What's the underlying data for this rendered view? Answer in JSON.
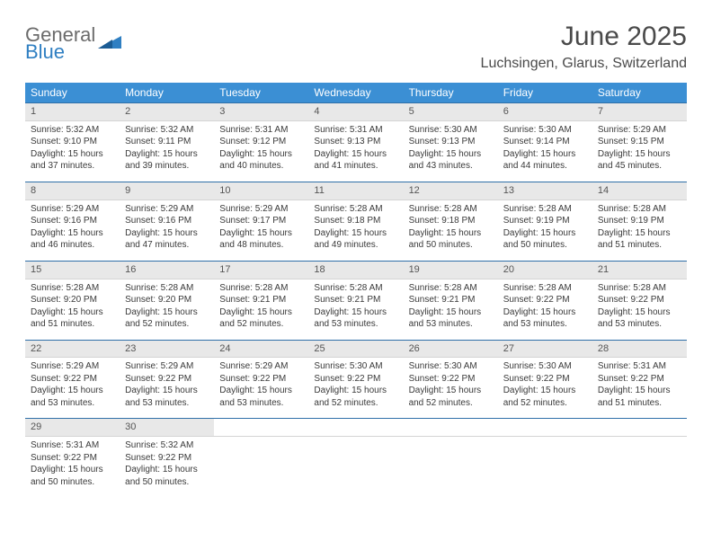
{
  "logo": {
    "line1": "General",
    "line2": "Blue"
  },
  "title": "June 2025",
  "location": "Luchsingen, Glarus, Switzerland",
  "colors": {
    "header_bg": "#3b8fd4",
    "header_text": "#ffffff",
    "daynum_bg": "#e8e8e8",
    "row_border": "#2f6fa8",
    "text": "#3a3a3a",
    "logo_blue": "#2f7fc2",
    "logo_gray": "#6b6b6b"
  },
  "weekdays": [
    "Sunday",
    "Monday",
    "Tuesday",
    "Wednesday",
    "Thursday",
    "Friday",
    "Saturday"
  ],
  "days": [
    {
      "n": 1,
      "sr": "5:32 AM",
      "ss": "9:10 PM",
      "dl": "15 hours and 37 minutes."
    },
    {
      "n": 2,
      "sr": "5:32 AM",
      "ss": "9:11 PM",
      "dl": "15 hours and 39 minutes."
    },
    {
      "n": 3,
      "sr": "5:31 AM",
      "ss": "9:12 PM",
      "dl": "15 hours and 40 minutes."
    },
    {
      "n": 4,
      "sr": "5:31 AM",
      "ss": "9:13 PM",
      "dl": "15 hours and 41 minutes."
    },
    {
      "n": 5,
      "sr": "5:30 AM",
      "ss": "9:13 PM",
      "dl": "15 hours and 43 minutes."
    },
    {
      "n": 6,
      "sr": "5:30 AM",
      "ss": "9:14 PM",
      "dl": "15 hours and 44 minutes."
    },
    {
      "n": 7,
      "sr": "5:29 AM",
      "ss": "9:15 PM",
      "dl": "15 hours and 45 minutes."
    },
    {
      "n": 8,
      "sr": "5:29 AM",
      "ss": "9:16 PM",
      "dl": "15 hours and 46 minutes."
    },
    {
      "n": 9,
      "sr": "5:29 AM",
      "ss": "9:16 PM",
      "dl": "15 hours and 47 minutes."
    },
    {
      "n": 10,
      "sr": "5:29 AM",
      "ss": "9:17 PM",
      "dl": "15 hours and 48 minutes."
    },
    {
      "n": 11,
      "sr": "5:28 AM",
      "ss": "9:18 PM",
      "dl": "15 hours and 49 minutes."
    },
    {
      "n": 12,
      "sr": "5:28 AM",
      "ss": "9:18 PM",
      "dl": "15 hours and 50 minutes."
    },
    {
      "n": 13,
      "sr": "5:28 AM",
      "ss": "9:19 PM",
      "dl": "15 hours and 50 minutes."
    },
    {
      "n": 14,
      "sr": "5:28 AM",
      "ss": "9:19 PM",
      "dl": "15 hours and 51 minutes."
    },
    {
      "n": 15,
      "sr": "5:28 AM",
      "ss": "9:20 PM",
      "dl": "15 hours and 51 minutes."
    },
    {
      "n": 16,
      "sr": "5:28 AM",
      "ss": "9:20 PM",
      "dl": "15 hours and 52 minutes."
    },
    {
      "n": 17,
      "sr": "5:28 AM",
      "ss": "9:21 PM",
      "dl": "15 hours and 52 minutes."
    },
    {
      "n": 18,
      "sr": "5:28 AM",
      "ss": "9:21 PM",
      "dl": "15 hours and 53 minutes."
    },
    {
      "n": 19,
      "sr": "5:28 AM",
      "ss": "9:21 PM",
      "dl": "15 hours and 53 minutes."
    },
    {
      "n": 20,
      "sr": "5:28 AM",
      "ss": "9:22 PM",
      "dl": "15 hours and 53 minutes."
    },
    {
      "n": 21,
      "sr": "5:28 AM",
      "ss": "9:22 PM",
      "dl": "15 hours and 53 minutes."
    },
    {
      "n": 22,
      "sr": "5:29 AM",
      "ss": "9:22 PM",
      "dl": "15 hours and 53 minutes."
    },
    {
      "n": 23,
      "sr": "5:29 AM",
      "ss": "9:22 PM",
      "dl": "15 hours and 53 minutes."
    },
    {
      "n": 24,
      "sr": "5:29 AM",
      "ss": "9:22 PM",
      "dl": "15 hours and 53 minutes."
    },
    {
      "n": 25,
      "sr": "5:30 AM",
      "ss": "9:22 PM",
      "dl": "15 hours and 52 minutes."
    },
    {
      "n": 26,
      "sr": "5:30 AM",
      "ss": "9:22 PM",
      "dl": "15 hours and 52 minutes."
    },
    {
      "n": 27,
      "sr": "5:30 AM",
      "ss": "9:22 PM",
      "dl": "15 hours and 52 minutes."
    },
    {
      "n": 28,
      "sr": "5:31 AM",
      "ss": "9:22 PM",
      "dl": "15 hours and 51 minutes."
    },
    {
      "n": 29,
      "sr": "5:31 AM",
      "ss": "9:22 PM",
      "dl": "15 hours and 50 minutes."
    },
    {
      "n": 30,
      "sr": "5:32 AM",
      "ss": "9:22 PM",
      "dl": "15 hours and 50 minutes."
    }
  ],
  "labels": {
    "sunrise": "Sunrise:",
    "sunset": "Sunset:",
    "daylight": "Daylight:"
  },
  "layout": {
    "start_weekday": 0,
    "rows": 5,
    "cols": 7
  }
}
